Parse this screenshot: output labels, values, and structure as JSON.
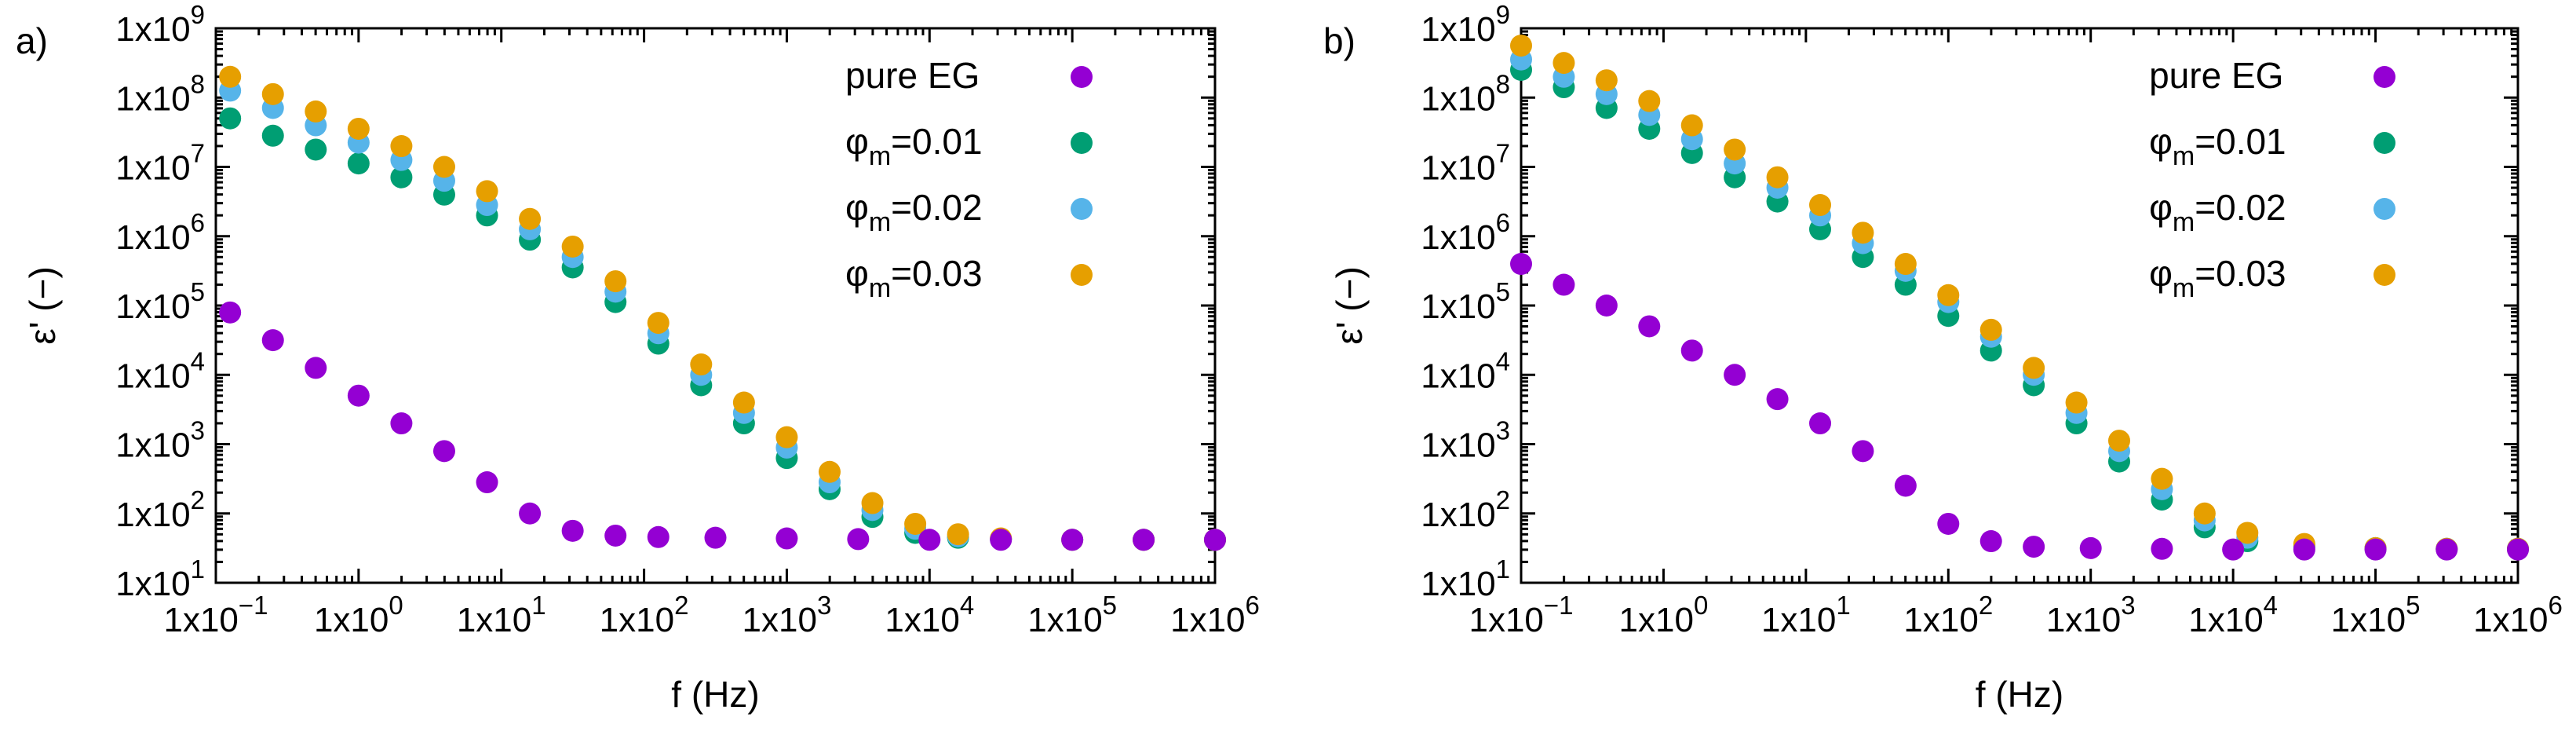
{
  "chart_data": [
    {
      "type": "scatter",
      "panel_label": "a)",
      "xscale": "log",
      "yscale": "log",
      "xlabel": "f (Hz)",
      "ylabel": "ε' (−)",
      "xlim": [
        0.1,
        1000000
      ],
      "ylim": [
        10,
        1000000000
      ],
      "xticks": [
        {
          "base": "1x10",
          "exp": "−1"
        },
        {
          "base": "1x10",
          "exp": "0"
        },
        {
          "base": "1x10",
          "exp": "1"
        },
        {
          "base": "1x10",
          "exp": "2"
        },
        {
          "base": "1x10",
          "exp": "3"
        },
        {
          "base": "1x10",
          "exp": "4"
        },
        {
          "base": "1x10",
          "exp": "5"
        },
        {
          "base": "1x10",
          "exp": "6"
        }
      ],
      "yticks": [
        {
          "base": "1x10",
          "exp": "1"
        },
        {
          "base": "1x10",
          "exp": "2"
        },
        {
          "base": "1x10",
          "exp": "3"
        },
        {
          "base": "1x10",
          "exp": "4"
        },
        {
          "base": "1x10",
          "exp": "5"
        },
        {
          "base": "1x10",
          "exp": "6"
        },
        {
          "base": "1x10",
          "exp": "7"
        },
        {
          "base": "1x10",
          "exp": "8"
        },
        {
          "base": "1x10",
          "exp": "9"
        }
      ],
      "legend_position": "top-right",
      "series": [
        {
          "name": "pure EG",
          "label_main": "pure EG",
          "label_sub": "",
          "label_tail": "",
          "color": "#9400D3",
          "log_points": [
            [
              -0.9,
              4.9
            ],
            [
              -0.6,
              4.5
            ],
            [
              -0.3,
              4.1
            ],
            [
              0.0,
              3.7
            ],
            [
              0.3,
              3.3
            ],
            [
              0.6,
              2.9
            ],
            [
              0.9,
              2.45
            ],
            [
              1.2,
              2.0
            ],
            [
              1.5,
              1.75
            ],
            [
              1.8,
              1.68
            ],
            [
              2.1,
              1.66
            ],
            [
              2.5,
              1.65
            ],
            [
              3.0,
              1.64
            ],
            [
              3.5,
              1.63
            ],
            [
              4.0,
              1.62
            ],
            [
              4.5,
              1.62
            ],
            [
              5.0,
              1.62
            ],
            [
              5.5,
              1.62
            ],
            [
              6.0,
              1.62
            ]
          ]
        },
        {
          "name": "φm=0.01",
          "label_main": "φ",
          "label_sub": "m",
          "label_tail": "=0.01",
          "color": "#009E73",
          "log_points": [
            [
              -0.9,
              7.7
            ],
            [
              -0.6,
              7.45
            ],
            [
              -0.3,
              7.25
            ],
            [
              0.0,
              7.05
            ],
            [
              0.3,
              6.85
            ],
            [
              0.6,
              6.6
            ],
            [
              0.9,
              6.3
            ],
            [
              1.2,
              5.95
            ],
            [
              1.5,
              5.55
            ],
            [
              1.8,
              5.05
            ],
            [
              2.1,
              4.45
            ],
            [
              2.4,
              3.85
            ],
            [
              2.7,
              3.3
            ],
            [
              3.0,
              2.8
            ],
            [
              3.3,
              2.35
            ],
            [
              3.6,
              1.95
            ],
            [
              3.9,
              1.72
            ],
            [
              4.2,
              1.65
            ],
            [
              4.5,
              1.63
            ],
            [
              5.0,
              1.62
            ],
            [
              5.5,
              1.62
            ],
            [
              6.0,
              1.62
            ]
          ]
        },
        {
          "name": "φm=0.02",
          "label_main": "φ",
          "label_sub": "m",
          "label_tail": "=0.02",
          "color": "#56B4E9",
          "log_points": [
            [
              -0.9,
              8.1
            ],
            [
              -0.6,
              7.85
            ],
            [
              -0.3,
              7.6
            ],
            [
              0.0,
              7.35
            ],
            [
              0.3,
              7.1
            ],
            [
              0.6,
              6.8
            ],
            [
              0.9,
              6.45
            ],
            [
              1.2,
              6.1
            ],
            [
              1.5,
              5.7
            ],
            [
              1.8,
              5.2
            ],
            [
              2.1,
              4.6
            ],
            [
              2.4,
              4.0
            ],
            [
              2.7,
              3.45
            ],
            [
              3.0,
              2.95
            ],
            [
              3.3,
              2.45
            ],
            [
              3.6,
              2.05
            ],
            [
              3.9,
              1.78
            ],
            [
              4.2,
              1.67
            ],
            [
              4.5,
              1.63
            ],
            [
              5.0,
              1.62
            ],
            [
              5.5,
              1.62
            ],
            [
              6.0,
              1.62
            ]
          ]
        },
        {
          "name": "φm=0.03",
          "label_main": "φ",
          "label_sub": "m",
          "label_tail": "=0.03",
          "color": "#E69F00",
          "log_points": [
            [
              -0.9,
              8.3
            ],
            [
              -0.6,
              8.05
            ],
            [
              -0.3,
              7.8
            ],
            [
              0.0,
              7.55
            ],
            [
              0.3,
              7.3
            ],
            [
              0.6,
              7.0
            ],
            [
              0.9,
              6.65
            ],
            [
              1.2,
              6.25
            ],
            [
              1.5,
              5.85
            ],
            [
              1.8,
              5.35
            ],
            [
              2.1,
              4.75
            ],
            [
              2.4,
              4.15
            ],
            [
              2.7,
              3.6
            ],
            [
              3.0,
              3.1
            ],
            [
              3.3,
              2.6
            ],
            [
              3.6,
              2.15
            ],
            [
              3.9,
              1.85
            ],
            [
              4.2,
              1.7
            ],
            [
              4.5,
              1.64
            ],
            [
              5.0,
              1.62
            ],
            [
              5.5,
              1.62
            ],
            [
              6.0,
              1.62
            ]
          ]
        }
      ]
    },
    {
      "type": "scatter",
      "panel_label": "b)",
      "xscale": "log",
      "yscale": "log",
      "xlabel": "f (Hz)",
      "ylabel": "ε' (−)",
      "xlim": [
        0.1,
        1000000
      ],
      "ylim": [
        10,
        1000000000
      ],
      "xticks": [
        {
          "base": "1x10",
          "exp": "−1"
        },
        {
          "base": "1x10",
          "exp": "0"
        },
        {
          "base": "1x10",
          "exp": "1"
        },
        {
          "base": "1x10",
          "exp": "2"
        },
        {
          "base": "1x10",
          "exp": "3"
        },
        {
          "base": "1x10",
          "exp": "4"
        },
        {
          "base": "1x10",
          "exp": "5"
        },
        {
          "base": "1x10",
          "exp": "6"
        }
      ],
      "yticks": [
        {
          "base": "1x10",
          "exp": "1"
        },
        {
          "base": "1x10",
          "exp": "2"
        },
        {
          "base": "1x10",
          "exp": "3"
        },
        {
          "base": "1x10",
          "exp": "4"
        },
        {
          "base": "1x10",
          "exp": "5"
        },
        {
          "base": "1x10",
          "exp": "6"
        },
        {
          "base": "1x10",
          "exp": "7"
        },
        {
          "base": "1x10",
          "exp": "8"
        },
        {
          "base": "1x10",
          "exp": "9"
        }
      ],
      "legend_position": "top-right",
      "series": [
        {
          "name": "pure EG",
          "label_main": "pure EG",
          "label_sub": "",
          "label_tail": "",
          "color": "#9400D3",
          "log_points": [
            [
              -1.0,
              5.6
            ],
            [
              -0.7,
              5.3
            ],
            [
              -0.4,
              5.0
            ],
            [
              -0.1,
              4.7
            ],
            [
              0.2,
              4.35
            ],
            [
              0.5,
              4.0
            ],
            [
              0.8,
              3.65
            ],
            [
              1.1,
              3.3
            ],
            [
              1.4,
              2.9
            ],
            [
              1.7,
              2.4
            ],
            [
              2.0,
              1.85
            ],
            [
              2.3,
              1.6
            ],
            [
              2.6,
              1.52
            ],
            [
              3.0,
              1.5
            ],
            [
              3.5,
              1.49
            ],
            [
              4.0,
              1.48
            ],
            [
              4.5,
              1.48
            ],
            [
              5.0,
              1.48
            ],
            [
              5.5,
              1.48
            ],
            [
              6.0,
              1.48
            ]
          ]
        },
        {
          "name": "φm=0.01",
          "label_main": "φ",
          "label_sub": "m",
          "label_tail": "=0.01",
          "color": "#009E73",
          "log_points": [
            [
              -1.0,
              8.4
            ],
            [
              -0.7,
              8.15
            ],
            [
              -0.4,
              7.85
            ],
            [
              -0.1,
              7.55
            ],
            [
              0.2,
              7.2
            ],
            [
              0.5,
              6.85
            ],
            [
              0.8,
              6.5
            ],
            [
              1.1,
              6.1
            ],
            [
              1.4,
              5.7
            ],
            [
              1.7,
              5.3
            ],
            [
              2.0,
              4.85
            ],
            [
              2.3,
              4.35
            ],
            [
              2.6,
              3.85
            ],
            [
              2.9,
              3.3
            ],
            [
              3.2,
              2.75
            ],
            [
              3.5,
              2.2
            ],
            [
              3.8,
              1.8
            ],
            [
              4.1,
              1.6
            ],
            [
              4.5,
              1.52
            ],
            [
              5.0,
              1.5
            ],
            [
              5.5,
              1.49
            ],
            [
              6.0,
              1.49
            ]
          ]
        },
        {
          "name": "φm=0.02",
          "label_main": "φ",
          "label_sub": "m",
          "label_tail": "=0.02",
          "color": "#56B4E9",
          "log_points": [
            [
              -1.0,
              8.55
            ],
            [
              -0.7,
              8.3
            ],
            [
              -0.4,
              8.05
            ],
            [
              -0.1,
              7.75
            ],
            [
              0.2,
              7.4
            ],
            [
              0.5,
              7.05
            ],
            [
              0.8,
              6.7
            ],
            [
              1.1,
              6.3
            ],
            [
              1.4,
              5.9
            ],
            [
              1.7,
              5.5
            ],
            [
              2.0,
              5.05
            ],
            [
              2.3,
              4.55
            ],
            [
              2.6,
              4.0
            ],
            [
              2.9,
              3.45
            ],
            [
              3.2,
              2.9
            ],
            [
              3.5,
              2.35
            ],
            [
              3.8,
              1.9
            ],
            [
              4.1,
              1.65
            ],
            [
              4.5,
              1.54
            ],
            [
              5.0,
              1.5
            ],
            [
              5.5,
              1.49
            ],
            [
              6.0,
              1.49
            ]
          ]
        },
        {
          "name": "φm=0.03",
          "label_main": "φ",
          "label_sub": "m",
          "label_tail": "=0.03",
          "color": "#E69F00",
          "log_points": [
            [
              -1.0,
              8.75
            ],
            [
              -0.7,
              8.5
            ],
            [
              -0.4,
              8.25
            ],
            [
              -0.1,
              7.95
            ],
            [
              0.2,
              7.6
            ],
            [
              0.5,
              7.25
            ],
            [
              0.8,
              6.85
            ],
            [
              1.1,
              6.45
            ],
            [
              1.4,
              6.05
            ],
            [
              1.7,
              5.6
            ],
            [
              2.0,
              5.15
            ],
            [
              2.3,
              4.65
            ],
            [
              2.6,
              4.1
            ],
            [
              2.9,
              3.6
            ],
            [
              3.2,
              3.05
            ],
            [
              3.5,
              2.5
            ],
            [
              3.8,
              2.0
            ],
            [
              4.1,
              1.72
            ],
            [
              4.5,
              1.56
            ],
            [
              5.0,
              1.5
            ],
            [
              5.5,
              1.49
            ],
            [
              6.0,
              1.49
            ]
          ]
        }
      ]
    }
  ]
}
